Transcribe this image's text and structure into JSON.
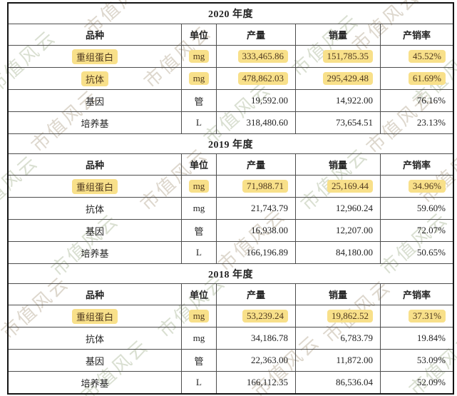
{
  "watermark": {
    "text": "市值风云"
  },
  "colors": {
    "highlight_bg": "#f8e08a",
    "highlight_text": "#503a20",
    "text": "#222222",
    "border_outer": "#141414",
    "border_inner": "#4d4d4d"
  },
  "table": {
    "columns": [
      "品种",
      "单位",
      "产量",
      "销量",
      "产销率"
    ],
    "sections": [
      {
        "year": "2020 年度",
        "rows": [
          {
            "cells": [
              "重组蛋白",
              "mg",
              "333,465.86",
              "151,785.35",
              "45.52%"
            ],
            "highlight": true
          },
          {
            "cells": [
              "抗体",
              "mg",
              "478,862.03",
              "295,429.48",
              "61.69%"
            ],
            "highlight": true
          },
          {
            "cells": [
              "基因",
              "管",
              "19,592.00",
              "14,922.00",
              "76.16%"
            ],
            "highlight": false
          },
          {
            "cells": [
              "培养基",
              "L",
              "318,480.60",
              "73,654.51",
              "23.13%"
            ],
            "highlight": false
          }
        ]
      },
      {
        "year": "2019 年度",
        "rows": [
          {
            "cells": [
              "重组蛋白",
              "mg",
              "71,988.71",
              "25,169.44",
              "34.96%"
            ],
            "highlight": true
          },
          {
            "cells": [
              "抗体",
              "mg",
              "21,743.79",
              "12,960.24",
              "59.60%"
            ],
            "highlight": false
          },
          {
            "cells": [
              "基因",
              "管",
              "16,938.00",
              "12,207.00",
              "72.07%"
            ],
            "highlight": false
          },
          {
            "cells": [
              "培养基",
              "L",
              "166,196.89",
              "84,180.00",
              "50.65%"
            ],
            "highlight": false
          }
        ]
      },
      {
        "year": "2018 年度",
        "rows": [
          {
            "cells": [
              "重组蛋白",
              "mg",
              "53,239.24",
              "19,862.52",
              "37.31%"
            ],
            "highlight": true
          },
          {
            "cells": [
              "抗体",
              "mg",
              "34,186.78",
              "6,783.79",
              "19.84%"
            ],
            "highlight": false
          },
          {
            "cells": [
              "基因",
              "管",
              "22,363.00",
              "11,872.00",
              "53.09%"
            ],
            "highlight": false
          },
          {
            "cells": [
              "培养基",
              "L",
              "166,112.35",
              "86,536.04",
              "52.09%"
            ],
            "highlight": false
          }
        ]
      }
    ]
  }
}
